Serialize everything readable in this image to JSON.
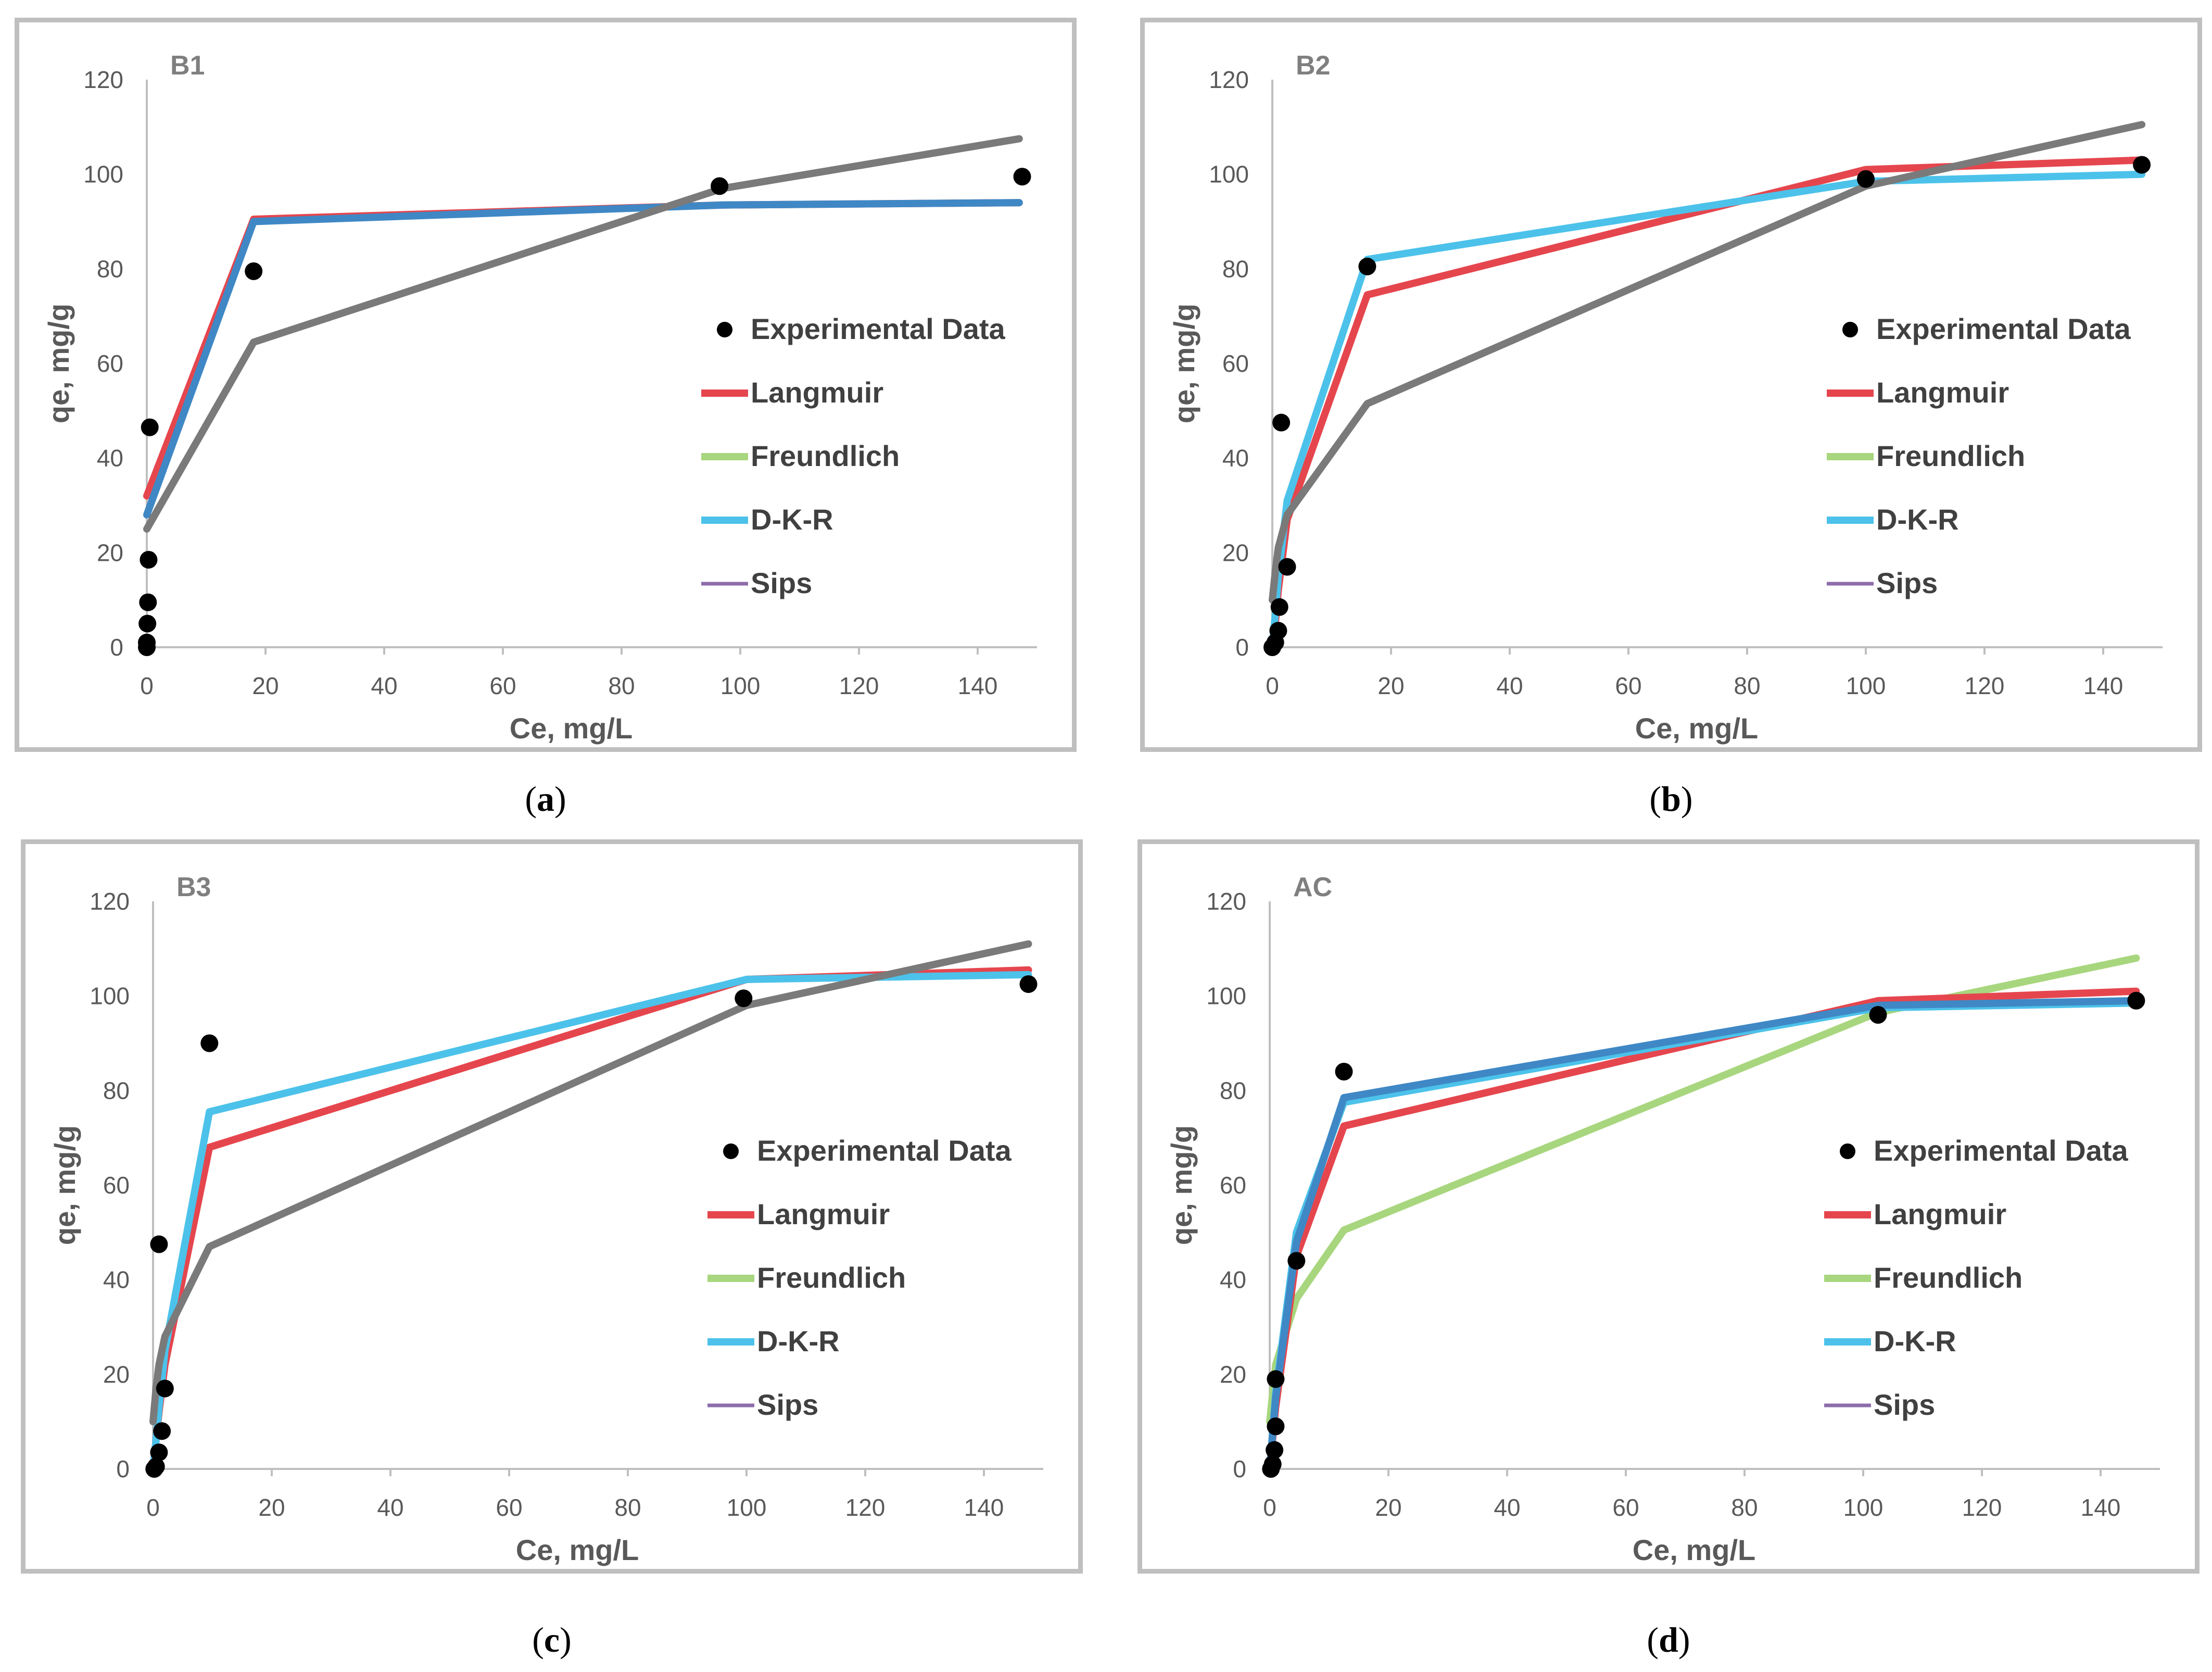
{
  "series_colors": {
    "Langmuir": "#e5464e",
    "Freundlich": "#a8d67e",
    "D-K-R": "#4cc2ea",
    "Sips": "#8d6cab",
    "Experimental Data": "#000000",
    "SipsOverlay": "#7a7a7a",
    "DKRDark": "#3f88c5"
  },
  "captions": {
    "a_open": "(",
    "a_letter": "a",
    "a_close": ")",
    "b_open": "(",
    "b_letter": "b",
    "b_close": ")",
    "c_open": "(",
    "c_letter": "c",
    "c_close": ")",
    "d_open": "(",
    "d_letter": "d",
    "d_close": ")"
  },
  "chart_data": [
    {
      "type": "line",
      "title": "B1",
      "xlabel": "Ce, mg/L",
      "ylabel": "qe, mg/g",
      "xlim": [
        0,
        150
      ],
      "ylim": [
        0,
        120
      ],
      "xticks": [
        "0",
        "20",
        "40",
        "60",
        "80",
        "100",
        "120",
        "140"
      ],
      "yticks": [
        "0",
        "20",
        "40",
        "60",
        "80",
        "100",
        "120"
      ],
      "legend_labels": [
        "Experimental Data",
        "Langmuir",
        "Freundlich",
        "D-K-R",
        "Sips"
      ],
      "experimental": {
        "x": [
          0,
          0,
          0.1,
          0.2,
          0.3,
          0.5,
          18,
          96.5,
          147.5
        ],
        "y": [
          0,
          1,
          5,
          9.5,
          18.5,
          46.5,
          79.5,
          97.5,
          99.5
        ]
      },
      "series": [
        {
          "name": "Langmuir",
          "color_key": "Langmuir",
          "x": [
            0,
            18,
            97,
            147
          ],
          "y": [
            32,
            90.5,
            93.5,
            94
          ]
        },
        {
          "name": "D-K-R",
          "color_key": "DKRDark",
          "x": [
            0,
            18,
            97,
            147
          ],
          "y": [
            28,
            90,
            93.5,
            94
          ]
        },
        {
          "name": "Sips",
          "color_key": "SipsOverlay",
          "x": [
            0,
            18,
            97,
            147
          ],
          "y": [
            25,
            64.5,
            97,
            107.5
          ]
        }
      ]
    },
    {
      "type": "line",
      "title": "B2",
      "xlabel": "Ce, mg/L",
      "ylabel": "qe, mg/g",
      "xlim": [
        0,
        150
      ],
      "ylim": [
        0,
        120
      ],
      "xticks": [
        "0",
        "20",
        "40",
        "60",
        "80",
        "100",
        "120",
        "140"
      ],
      "yticks": [
        "0",
        "20",
        "40",
        "60",
        "80",
        "100",
        "120"
      ],
      "legend_labels": [
        "Experimental Data",
        "Langmuir",
        "Freundlich",
        "D-K-R",
        "Sips"
      ],
      "experimental": {
        "x": [
          0,
          0.5,
          1,
          1.2,
          1.5,
          2.5,
          16,
          100,
          146.5
        ],
        "y": [
          0,
          1,
          3.5,
          8.5,
          47.5,
          17,
          80.5,
          99,
          102
        ]
      },
      "series": [
        {
          "name": "Langmuir",
          "color_key": "Langmuir",
          "x": [
            0,
            0.5,
            1,
            2.5,
            16,
            100,
            146.5
          ],
          "y": [
            0,
            5,
            12,
            27,
            74.5,
            101,
            103
          ]
        },
        {
          "name": "D-K-R",
          "color_key": "D-K-R",
          "x": [
            0,
            0.5,
            1,
            2.5,
            16,
            100,
            146.5
          ],
          "y": [
            0,
            7,
            15,
            31,
            82,
            98.5,
            100
          ]
        },
        {
          "name": "Sips",
          "color_key": "SipsOverlay",
          "x": [
            0,
            0.5,
            1,
            2.5,
            16,
            100,
            146.5
          ],
          "y": [
            10,
            16,
            21,
            28,
            51.5,
            97.5,
            110.5
          ]
        }
      ]
    },
    {
      "type": "line",
      "title": "B3",
      "xlabel": "Ce, mg/L",
      "ylabel": "qe, mg/g",
      "xlim": [
        0,
        150
      ],
      "ylim": [
        0,
        120
      ],
      "xticks": [
        "0",
        "20",
        "40",
        "60",
        "80",
        "100",
        "120",
        "140"
      ],
      "yticks": [
        "0",
        "20",
        "40",
        "60",
        "80",
        "100",
        "120"
      ],
      "legend_labels": [
        "Experimental Data",
        "Langmuir",
        "Freundlich",
        "D-K-R",
        "Sips"
      ],
      "experimental": {
        "x": [
          0.2,
          0.5,
          1,
          1.5,
          2,
          1,
          9.5,
          99.5,
          147.5
        ],
        "y": [
          0,
          0.5,
          3.5,
          8,
          17,
          47.5,
          90,
          99.5,
          102.5
        ]
      },
      "series": [
        {
          "name": "Langmuir",
          "color_key": "Langmuir",
          "x": [
            0,
            0.5,
            1,
            2,
            9.5,
            100,
            147.5
          ],
          "y": [
            0,
            6,
            12,
            22,
            68,
            103.5,
            105.5
          ]
        },
        {
          "name": "D-K-R",
          "color_key": "D-K-R",
          "x": [
            0,
            0.5,
            1,
            2,
            9.5,
            100,
            147.5
          ],
          "y": [
            0,
            6,
            13,
            25,
            75.5,
            103.5,
            104.5
          ]
        },
        {
          "name": "Sips",
          "color_key": "SipsOverlay",
          "x": [
            0,
            0.5,
            1,
            2,
            9.5,
            100,
            147.5
          ],
          "y": [
            10,
            17,
            22,
            28,
            47,
            98,
            111
          ]
        }
      ]
    },
    {
      "type": "line",
      "title": "AC",
      "xlabel": "Ce, mg/L",
      "ylabel": "qe, mg/g",
      "xlim": [
        0,
        150
      ],
      "ylim": [
        0,
        120
      ],
      "xticks": [
        "0",
        "20",
        "40",
        "60",
        "80",
        "100",
        "120",
        "140"
      ],
      "yticks": [
        "0",
        "20",
        "40",
        "60",
        "80",
        "100",
        "120"
      ],
      "legend_labels": [
        "Experimental Data",
        "Langmuir",
        "Freundlich",
        "D-K-R",
        "Sips"
      ],
      "experimental": {
        "x": [
          0.2,
          0.5,
          0.8,
          1,
          1,
          4.5,
          12.5,
          102.5,
          146
        ],
        "y": [
          0,
          1,
          4,
          9,
          19,
          44,
          84,
          96,
          99
        ]
      },
      "series": [
        {
          "name": "Freundlich",
          "color_key": "Freundlich",
          "x": [
            0,
            1,
            4.5,
            12.5,
            102.5,
            146
          ],
          "y": [
            10,
            22,
            36,
            50.5,
            96.5,
            108
          ]
        },
        {
          "name": "Langmuir",
          "color_key": "Langmuir",
          "x": [
            0,
            1,
            4.5,
            12.5,
            102.5,
            146
          ],
          "y": [
            0,
            13,
            45,
            72.5,
            99,
            101
          ]
        },
        {
          "name": "D-K-R",
          "color_key": "D-K-R",
          "x": [
            0,
            1,
            4.5,
            12.5,
            102.5,
            146
          ],
          "y": [
            0,
            16,
            50,
            77.5,
            97.5,
            98.5
          ]
        },
        {
          "name": "Sips",
          "color_key": "DKRDark",
          "x": [
            0,
            1,
            4.5,
            12.5,
            102.5,
            146
          ],
          "y": [
            0,
            15,
            48,
            78.5,
            98,
            99
          ]
        }
      ]
    }
  ]
}
